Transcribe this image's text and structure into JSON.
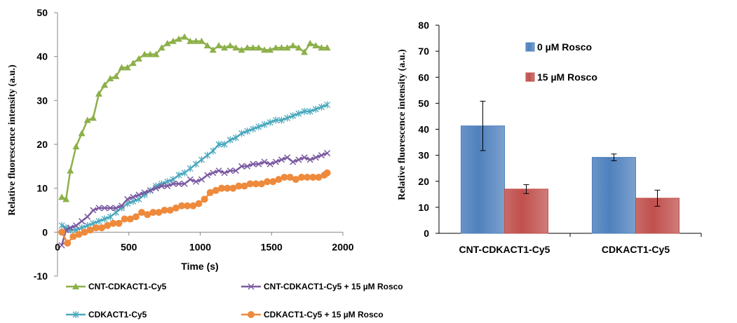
{
  "chart_data": [
    {
      "type": "line",
      "xlabel": "Time (s)",
      "ylabel": "Relative fluorescence intensity (a.u.)",
      "xlim": [
        0,
        2000
      ],
      "ylim": [
        -10,
        50
      ],
      "xticks": [
        "0",
        "500",
        "1000",
        "1500",
        "2000"
      ],
      "yticks": [
        "-10",
        "0",
        "10",
        "20",
        "30",
        "40",
        "50"
      ],
      "legend_position": "bottom",
      "series": [
        {
          "name": "CNT-CDKACT1-Cy5",
          "color": "#8db04a",
          "marker": "triangle",
          "x": [
            30,
            60,
            90,
            130,
            170,
            210,
            250,
            290,
            330,
            370,
            410,
            450,
            490,
            530,
            570,
            610,
            650,
            690,
            730,
            770,
            810,
            850,
            890,
            930,
            970,
            1010,
            1050,
            1090,
            1130,
            1170,
            1210,
            1250,
            1290,
            1330,
            1370,
            1410,
            1450,
            1490,
            1530,
            1570,
            1610,
            1650,
            1690,
            1730,
            1770,
            1810,
            1850,
            1890
          ],
          "y": [
            8,
            7.5,
            14,
            19.5,
            22.5,
            25.5,
            26,
            31.5,
            33.5,
            35,
            35.5,
            37.5,
            37.5,
            38.5,
            39.5,
            40.5,
            40.5,
            40.5,
            42,
            43,
            43.5,
            44,
            44.5,
            43.5,
            43.5,
            43.5,
            42.5,
            41.5,
            42.5,
            42,
            42.5,
            42,
            41.5,
            42,
            42,
            42,
            41.5,
            41.5,
            42,
            42,
            42,
            42.5,
            42,
            41,
            43,
            42.5,
            42,
            42
          ]
        },
        {
          "name": "CNT-CDKACT1-Cy5 + 15 µM Rosco",
          "color": "#7b5aa0",
          "marker": "x",
          "x": [
            30,
            60,
            90,
            130,
            170,
            210,
            250,
            290,
            330,
            370,
            410,
            450,
            490,
            530,
            570,
            610,
            650,
            690,
            730,
            770,
            810,
            850,
            890,
            930,
            970,
            1010,
            1050,
            1090,
            1130,
            1170,
            1210,
            1250,
            1290,
            1330,
            1370,
            1410,
            1450,
            1490,
            1530,
            1570,
            1610,
            1650,
            1690,
            1730,
            1770,
            1810,
            1850,
            1890
          ],
          "y": [
            -3,
            0.5,
            1,
            1.5,
            2.5,
            3.5,
            5,
            5.5,
            5.5,
            5.5,
            5.5,
            6,
            7.5,
            8,
            8.5,
            9,
            9.5,
            10,
            10.5,
            10.5,
            11,
            11,
            11,
            12,
            11.5,
            12,
            13,
            13.5,
            14,
            13.5,
            14,
            14,
            15,
            15,
            15.5,
            15.5,
            16,
            15.5,
            16,
            16.5,
            17,
            16,
            16.5,
            17,
            16.5,
            17,
            17.5,
            18
          ]
        },
        {
          "name": "CDKACT1-Cy5",
          "color": "#4aa8bd",
          "marker": "star",
          "x": [
            30,
            60,
            90,
            130,
            170,
            210,
            250,
            290,
            330,
            370,
            410,
            450,
            490,
            530,
            570,
            610,
            650,
            690,
            730,
            770,
            810,
            850,
            890,
            930,
            970,
            1010,
            1050,
            1090,
            1130,
            1170,
            1210,
            1250,
            1290,
            1330,
            1370,
            1410,
            1450,
            1490,
            1530,
            1570,
            1610,
            1650,
            1690,
            1730,
            1770,
            1810,
            1850,
            1890
          ],
          "y": [
            1.5,
            1,
            0.5,
            0.5,
            1,
            1.5,
            2,
            2.5,
            3,
            3.5,
            4.5,
            5.5,
            6.5,
            7,
            7.5,
            8.5,
            9.5,
            10.5,
            11,
            11.5,
            12,
            13,
            13.5,
            14.5,
            15.5,
            16.5,
            17.5,
            18.5,
            20,
            20,
            21,
            21.5,
            22.5,
            23,
            23.5,
            24,
            24.5,
            25,
            25.5,
            25.5,
            26,
            26.5,
            27,
            27.5,
            27.5,
            28,
            28.5,
            29
          ]
        },
        {
          "name": "CDKACT1-Cy5 + 15 µM Rosco",
          "color": "#ee8a3c",
          "marker": "circle",
          "x": [
            30,
            70,
            110,
            150,
            190,
            230,
            270,
            310,
            350,
            390,
            430,
            470,
            510,
            550,
            590,
            630,
            670,
            710,
            750,
            790,
            830,
            870,
            910,
            950,
            990,
            1030,
            1070,
            1110,
            1150,
            1190,
            1230,
            1270,
            1310,
            1350,
            1390,
            1430,
            1470,
            1510,
            1550,
            1590,
            1630,
            1670,
            1710,
            1750,
            1790,
            1830,
            1870,
            1890
          ],
          "y": [
            0,
            -2.5,
            -1,
            -0.5,
            0,
            0.5,
            1,
            1,
            1.5,
            2,
            2,
            3,
            3,
            3.5,
            4.5,
            4,
            4.5,
            4.5,
            5,
            5,
            5.5,
            6,
            6,
            6,
            6.5,
            7.5,
            9,
            9.5,
            10,
            10,
            10,
            10.5,
            10.5,
            11,
            11,
            11,
            11.5,
            11.5,
            12,
            12.5,
            12.5,
            12,
            12.5,
            12.5,
            12.5,
            12.5,
            13,
            13.5
          ]
        }
      ]
    },
    {
      "type": "bar",
      "ylabel": "Relative fluorescence intensity (a.u.)",
      "ylim": [
        0,
        80
      ],
      "yticks": [
        "0",
        "10",
        "20",
        "30",
        "40",
        "50",
        "60",
        "70",
        "80"
      ],
      "categories": [
        "CNT-CDKACT1-Cy5",
        "CDKACT1-Cy5"
      ],
      "legend_position": "top-center",
      "series": [
        {
          "name": "0 µM Rosco",
          "color": "#4f81bd",
          "values": [
            41.3,
            29.2
          ],
          "errors": [
            9.5,
            1.3
          ]
        },
        {
          "name": "15 µM Rosco",
          "color": "#c0504d",
          "values": [
            17.0,
            13.5
          ],
          "errors": [
            1.7,
            3.1
          ]
        }
      ]
    }
  ]
}
